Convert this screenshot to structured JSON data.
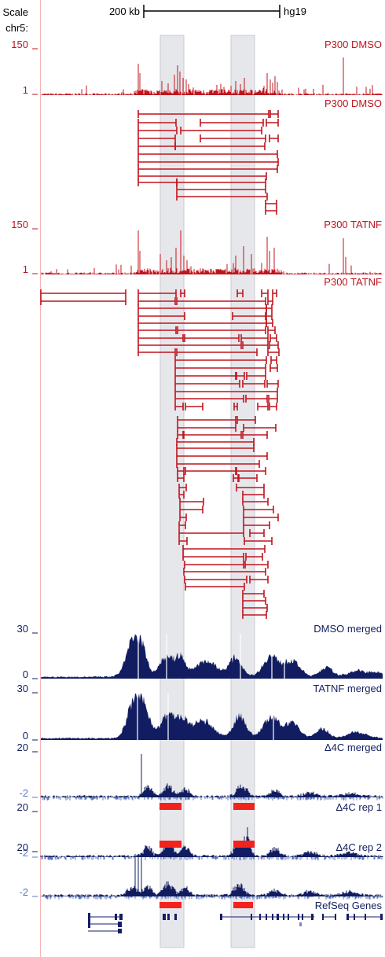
{
  "header": {
    "scale_label": "Scale",
    "chrom_label": "chr5:",
    "scalebar_label": "200 kb",
    "assembly": "hg19"
  },
  "colors": {
    "red": "#c0141e",
    "navy": "#111d60",
    "neg": "#5b79c0",
    "highlight": "#e6e7eb",
    "bed": "#f2231d",
    "gene": "#151c6a"
  },
  "tracks": {
    "p300_dmso_signal": {
      "label": "P300 DMSO",
      "ymax": "150",
      "ymin": "1"
    },
    "p300_dmso_loops": {
      "label": "P300 DMSO"
    },
    "p300_tatnf_signal": {
      "label": "P300 TATNF",
      "ymax": "150",
      "ymin": "1"
    },
    "p300_tatnf_loops": {
      "label": "P300 TATNF"
    },
    "dmso_merged": {
      "label": "DMSO merged",
      "ymax": "30",
      "ymin": "0"
    },
    "tatnf_merged": {
      "label": "TATNF merged",
      "ymax": "30",
      "ymin": "0"
    },
    "d4c_merged": {
      "label": "Δ4C merged",
      "ymax": "20",
      "ymin": "-2"
    },
    "d4c_rep1": {
      "label": "Δ4C rep 1",
      "ymax": "20",
      "ymin": "-2"
    },
    "d4c_rep2": {
      "label": "Δ4C rep 2",
      "ymax": "20",
      "ymin": "-2"
    },
    "refseq": {
      "label": "RefSeq Genes"
    }
  }
}
